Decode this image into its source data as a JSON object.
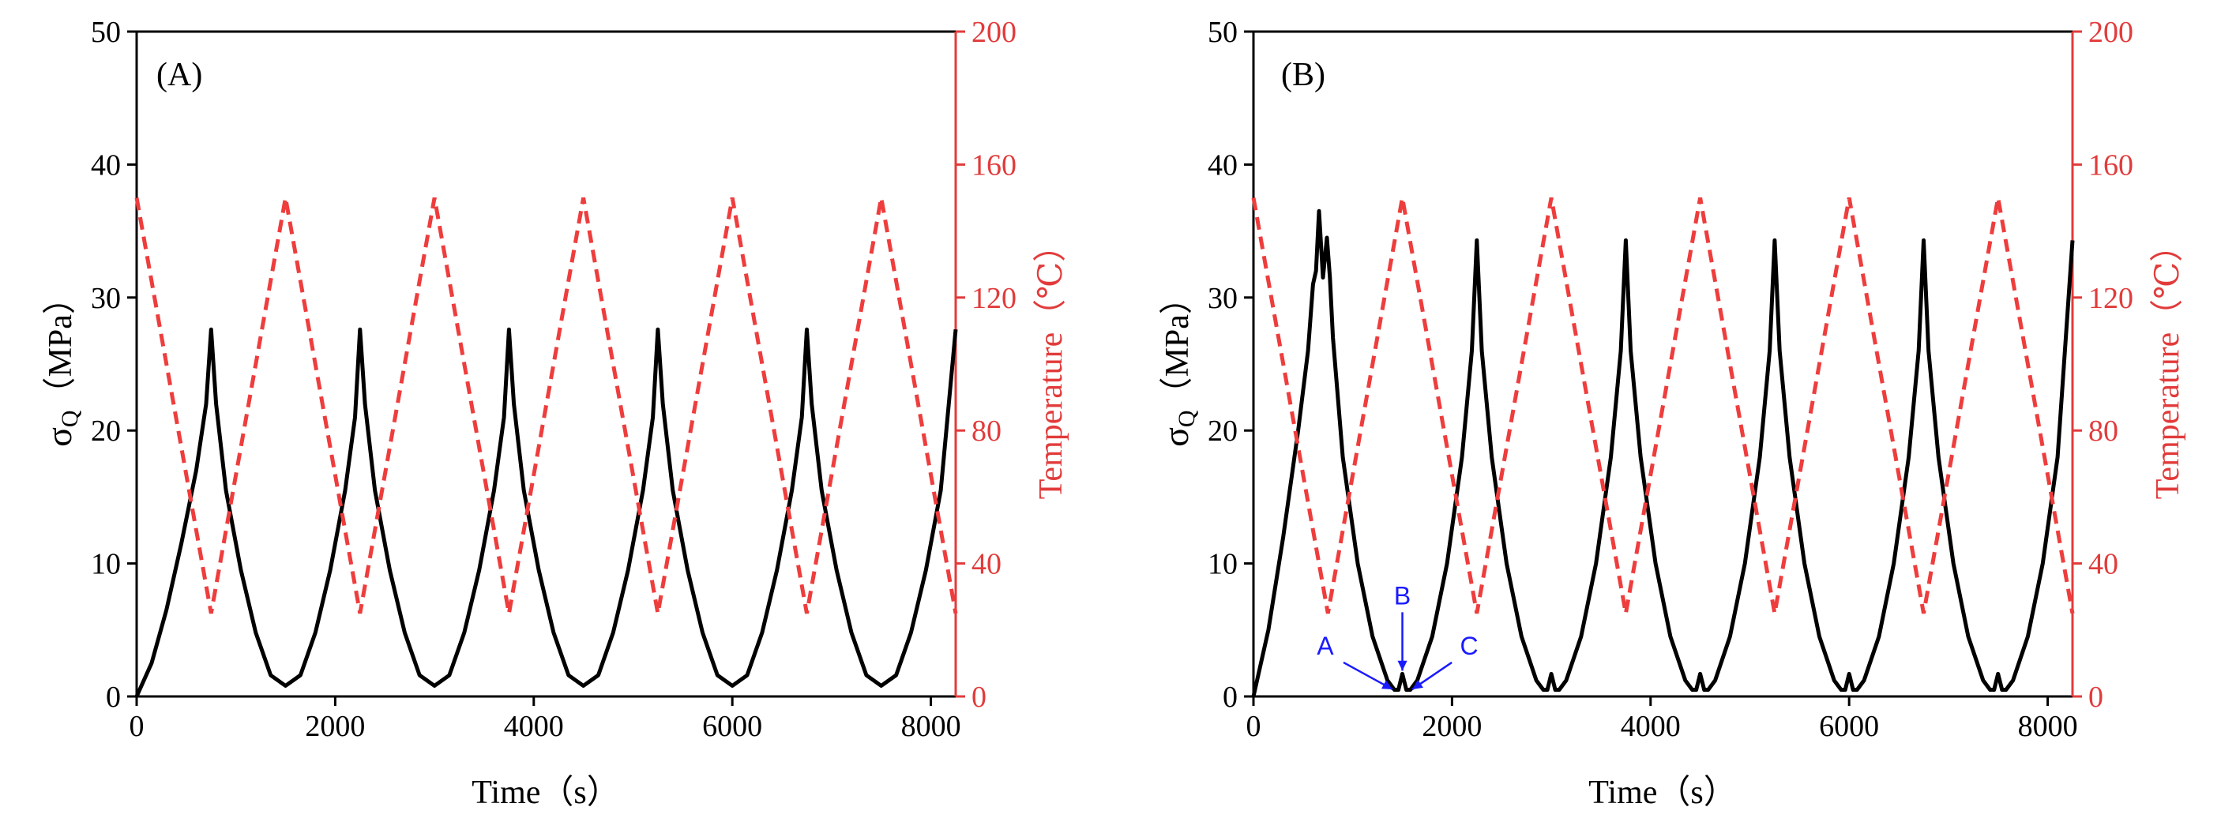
{
  "chart_data": [
    {
      "type": "line",
      "panel_label": "(A)",
      "xlabel": "Time（s）",
      "ylabel_left_main": "σ",
      "ylabel_left_sub": "Q",
      "ylabel_left_rest": "（MPa）",
      "ylabel_right": "Temperature（℃）",
      "xlim": [
        0,
        8250
      ],
      "ylim_left": [
        0,
        50
      ],
      "ylim_right": [
        0,
        200
      ],
      "xticks": [
        0,
        2000,
        4000,
        6000,
        8000
      ],
      "yticks_left": [
        0,
        10,
        20,
        30,
        40,
        50
      ],
      "yticks_right": [
        0,
        40,
        80,
        120,
        160,
        200
      ],
      "series": [
        {
          "name": "σQ",
          "axis": "left",
          "color": "#000000",
          "style": "solid",
          "x": [
            0,
            150,
            300,
            450,
            600,
            700,
            750,
            800,
            900,
            1050,
            1200,
            1350,
            1500,
            1650,
            1800,
            1950,
            2100,
            2200,
            2250,
            2300,
            2400,
            2550,
            2700,
            2850,
            3000,
            3150,
            3300,
            3450,
            3600,
            3700,
            3750,
            3800,
            3900,
            4050,
            4200,
            4350,
            4500,
            4650,
            4800,
            4950,
            5100,
            5200,
            5250,
            5300,
            5400,
            5550,
            5700,
            5850,
            6000,
            6150,
            6300,
            6450,
            6600,
            6700,
            6750,
            6800,
            6900,
            7050,
            7200,
            7350,
            7500,
            7650,
            7800,
            7950,
            8100,
            8250
          ],
          "values": [
            0,
            2.5,
            6.5,
            11.5,
            17,
            22,
            27.6,
            22,
            15.5,
            9.5,
            4.8,
            1.6,
            0.8,
            1.6,
            4.8,
            9.5,
            15.5,
            21,
            27.6,
            22,
            15.5,
            9.5,
            4.8,
            1.6,
            0.8,
            1.6,
            4.8,
            9.5,
            15.5,
            21,
            27.6,
            22,
            15.5,
            9.5,
            4.8,
            1.6,
            0.8,
            1.6,
            4.8,
            9.5,
            15.5,
            21,
            27.6,
            22,
            15.5,
            9.5,
            4.8,
            1.6,
            0.8,
            1.6,
            4.8,
            9.5,
            15.5,
            21,
            27.6,
            22,
            15.5,
            9.5,
            4.8,
            1.6,
            0.8,
            1.6,
            4.8,
            9.5,
            15.5,
            27.6
          ]
        },
        {
          "name": "Temperature",
          "axis": "right",
          "color": "#ee3d3d",
          "style": "dashed",
          "x": [
            0,
            750,
            1500,
            2250,
            3000,
            3750,
            4500,
            5250,
            6000,
            6750,
            7500,
            8250
          ],
          "values": [
            150,
            25,
            150,
            25,
            150,
            25,
            150,
            25,
            150,
            25,
            150,
            25
          ]
        }
      ]
    },
    {
      "type": "line",
      "panel_label": "(B)",
      "xlabel": "Time（s）",
      "ylabel_left_main": "σ",
      "ylabel_left_sub": "Q",
      "ylabel_left_rest": "（MPa）",
      "ylabel_right": "Temperature（℃）",
      "xlim": [
        0,
        8250
      ],
      "ylim_left": [
        0,
        50
      ],
      "ylim_right": [
        0,
        200
      ],
      "xticks": [
        0,
        2000,
        4000,
        6000,
        8000
      ],
      "yticks_left": [
        0,
        10,
        20,
        30,
        40,
        50
      ],
      "yticks_right": [
        0,
        40,
        80,
        120,
        160,
        200
      ],
      "annotations": [
        {
          "label": "A",
          "x": 1400,
          "y": 0.3
        },
        {
          "label": "B",
          "x": 1500,
          "y": 1.7
        },
        {
          "label": "C",
          "x": 1600,
          "y": 0.3
        }
      ],
      "series": [
        {
          "name": "σQ",
          "axis": "left",
          "color": "#000000",
          "style": "solid",
          "x": [
            0,
            150,
            300,
            450,
            550,
            600,
            630,
            660,
            700,
            740,
            770,
            800,
            900,
            1050,
            1200,
            1350,
            1420,
            1460,
            1500,
            1540,
            1580,
            1650,
            1800,
            1950,
            2100,
            2200,
            2250,
            2300,
            2400,
            2550,
            2700,
            2850,
            2920,
            2960,
            3000,
            3040,
            3080,
            3150,
            3300,
            3450,
            3600,
            3700,
            3750,
            3800,
            3900,
            4050,
            4200,
            4350,
            4420,
            4460,
            4500,
            4540,
            4580,
            4650,
            4800,
            4950,
            5100,
            5200,
            5250,
            5300,
            5400,
            5550,
            5700,
            5850,
            5920,
            5960,
            6000,
            6040,
            6080,
            6150,
            6300,
            6450,
            6600,
            6700,
            6750,
            6800,
            6900,
            7050,
            7200,
            7350,
            7420,
            7460,
            7500,
            7540,
            7580,
            7650,
            7800,
            7950,
            8100,
            8250
          ],
          "values": [
            0,
            5,
            12,
            20,
            26,
            31,
            32,
            36.5,
            31.5,
            34.5,
            31.5,
            27,
            18,
            10,
            4.5,
            1.2,
            0.5,
            0.5,
            1.7,
            0.5,
            0.5,
            1.2,
            4.5,
            10,
            18,
            26,
            34.3,
            26,
            18,
            10,
            4.5,
            1.2,
            0.5,
            0.5,
            1.7,
            0.5,
            0.5,
            1.2,
            4.5,
            10,
            18,
            26,
            34.3,
            26,
            18,
            10,
            4.5,
            1.2,
            0.5,
            0.5,
            1.7,
            0.5,
            0.5,
            1.2,
            4.5,
            10,
            18,
            26,
            34.3,
            26,
            18,
            10,
            4.5,
            1.2,
            0.5,
            0.5,
            1.7,
            0.5,
            0.5,
            1.2,
            4.5,
            10,
            18,
            26,
            34.3,
            26,
            18,
            10,
            4.5,
            1.2,
            0.5,
            0.5,
            1.7,
            0.5,
            0.5,
            1.2,
            4.5,
            10,
            18,
            34.3
          ]
        },
        {
          "name": "Temperature",
          "axis": "right",
          "color": "#ee3d3d",
          "style": "dashed",
          "x": [
            0,
            750,
            1500,
            2250,
            3000,
            3750,
            4500,
            5250,
            6000,
            6750,
            7500,
            8250
          ],
          "values": [
            150,
            25,
            150,
            25,
            150,
            25,
            150,
            25,
            150,
            25,
            150,
            25
          ]
        }
      ]
    }
  ]
}
